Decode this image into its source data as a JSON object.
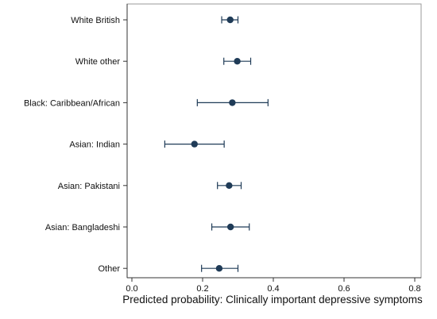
{
  "chart_data": {
    "type": "scatter",
    "title": "",
    "xlabel": "Predicted probability: Clinically important depressive symptoms",
    "ylabel": "",
    "xlim": [
      0,
      0.8
    ],
    "xticks": [
      0.0,
      0.2,
      0.4,
      0.6,
      0.8
    ],
    "xtick_labels": [
      "0.0",
      "0.2",
      "0.4",
      "0.6",
      "0.8"
    ],
    "grid": false,
    "legend": "none",
    "marker_color": "#1f3b57",
    "errorbar_color": "#1f3b57",
    "categories": [
      "White British",
      "White other",
      "Black: Caribbean/African",
      "Asian: Indian",
      "Asian: Pakistani",
      "Asian: Bangladeshi",
      "Other"
    ],
    "estimates": [
      0.278,
      0.298,
      0.284,
      0.177,
      0.275,
      0.279,
      0.247
    ],
    "ci_lower": [
      0.254,
      0.26,
      0.185,
      0.093,
      0.242,
      0.226,
      0.197
    ],
    "ci_upper": [
      0.3,
      0.336,
      0.385,
      0.261,
      0.309,
      0.332,
      0.3
    ]
  }
}
